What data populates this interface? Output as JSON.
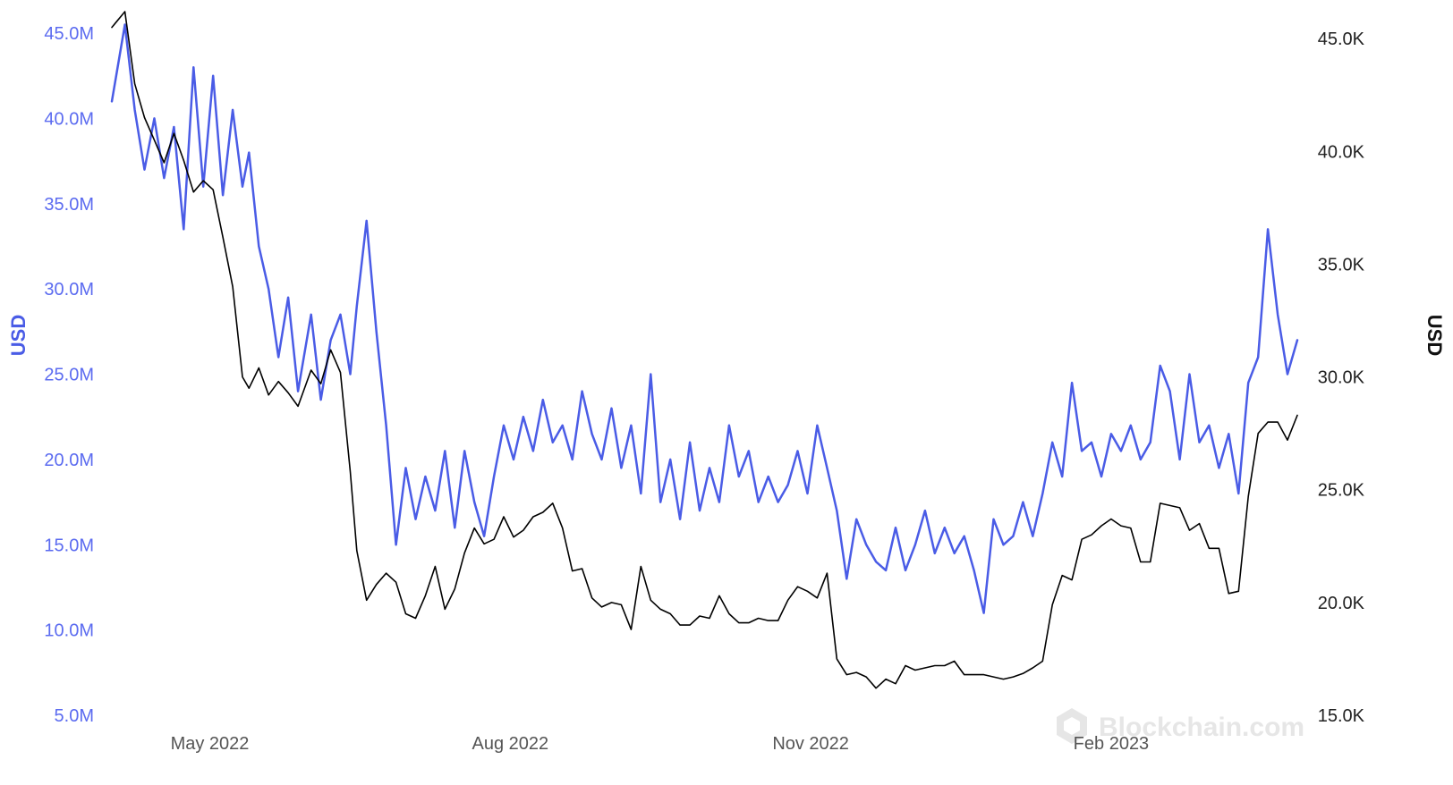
{
  "chart_data": {
    "type": "line",
    "x_tick_labels": [
      "May 2022",
      "Aug 2022",
      "Nov 2022",
      "Feb 2023"
    ],
    "x_tick_dates": [
      "2022-05-01",
      "2022-08-01",
      "2022-11-01",
      "2023-02-01"
    ],
    "y_left": {
      "label": "USD",
      "ticks": [
        "5.0M",
        "10.0M",
        "15.0M",
        "20.0M",
        "25.0M",
        "30.0M",
        "35.0M",
        "40.0M",
        "45.0M"
      ],
      "ylim": [
        5000000,
        46000000
      ]
    },
    "y_right": {
      "label": "USD",
      "ticks": [
        "15.0K",
        "20.0K",
        "25.0K",
        "30.0K",
        "35.0K",
        "40.0K",
        "45.0K"
      ],
      "ylim": [
        15000,
        46000
      ]
    },
    "colors": {
      "left_series": "#4a5ce6",
      "right_series": "#000000"
    },
    "series": [
      {
        "axis": "left",
        "points": [
          [
            "2022-04-01",
            41000000
          ],
          [
            "2022-04-05",
            45500000
          ],
          [
            "2022-04-08",
            40500000
          ],
          [
            "2022-04-11",
            37000000
          ],
          [
            "2022-04-14",
            40000000
          ],
          [
            "2022-04-17",
            36500000
          ],
          [
            "2022-04-20",
            39500000
          ],
          [
            "2022-04-23",
            33500000
          ],
          [
            "2022-04-26",
            43000000
          ],
          [
            "2022-04-29",
            36000000
          ],
          [
            "2022-05-02",
            42500000
          ],
          [
            "2022-05-05",
            35500000
          ],
          [
            "2022-05-08",
            40500000
          ],
          [
            "2022-05-11",
            36000000
          ],
          [
            "2022-05-13",
            38000000
          ],
          [
            "2022-05-16",
            32500000
          ],
          [
            "2022-05-19",
            30000000
          ],
          [
            "2022-05-22",
            26000000
          ],
          [
            "2022-05-25",
            29500000
          ],
          [
            "2022-05-28",
            24000000
          ],
          [
            "2022-06-01",
            28500000
          ],
          [
            "2022-06-04",
            23500000
          ],
          [
            "2022-06-07",
            27000000
          ],
          [
            "2022-06-10",
            28500000
          ],
          [
            "2022-06-13",
            25000000
          ],
          [
            "2022-06-15",
            29000000
          ],
          [
            "2022-06-18",
            34000000
          ],
          [
            "2022-06-21",
            27500000
          ],
          [
            "2022-06-24",
            22000000
          ],
          [
            "2022-06-27",
            15000000
          ],
          [
            "2022-06-30",
            19500000
          ],
          [
            "2022-07-03",
            16500000
          ],
          [
            "2022-07-06",
            19000000
          ],
          [
            "2022-07-09",
            17000000
          ],
          [
            "2022-07-12",
            20500000
          ],
          [
            "2022-07-15",
            16000000
          ],
          [
            "2022-07-18",
            20500000
          ],
          [
            "2022-07-21",
            17500000
          ],
          [
            "2022-07-24",
            15500000
          ],
          [
            "2022-07-27",
            19000000
          ],
          [
            "2022-07-30",
            22000000
          ],
          [
            "2022-08-02",
            20000000
          ],
          [
            "2022-08-05",
            22500000
          ],
          [
            "2022-08-08",
            20500000
          ],
          [
            "2022-08-11",
            23500000
          ],
          [
            "2022-08-14",
            21000000
          ],
          [
            "2022-08-17",
            22000000
          ],
          [
            "2022-08-20",
            20000000
          ],
          [
            "2022-08-23",
            24000000
          ],
          [
            "2022-08-26",
            21500000
          ],
          [
            "2022-08-29",
            20000000
          ],
          [
            "2022-09-01",
            23000000
          ],
          [
            "2022-09-04",
            19500000
          ],
          [
            "2022-09-07",
            22000000
          ],
          [
            "2022-09-10",
            18000000
          ],
          [
            "2022-09-13",
            25000000
          ],
          [
            "2022-09-16",
            17500000
          ],
          [
            "2022-09-19",
            20000000
          ],
          [
            "2022-09-22",
            16500000
          ],
          [
            "2022-09-25",
            21000000
          ],
          [
            "2022-09-28",
            17000000
          ],
          [
            "2022-10-01",
            19500000
          ],
          [
            "2022-10-04",
            17500000
          ],
          [
            "2022-10-07",
            22000000
          ],
          [
            "2022-10-10",
            19000000
          ],
          [
            "2022-10-13",
            20500000
          ],
          [
            "2022-10-16",
            17500000
          ],
          [
            "2022-10-19",
            19000000
          ],
          [
            "2022-10-22",
            17500000
          ],
          [
            "2022-10-25",
            18500000
          ],
          [
            "2022-10-28",
            20500000
          ],
          [
            "2022-10-31",
            18000000
          ],
          [
            "2022-11-03",
            22000000
          ],
          [
            "2022-11-06",
            19500000
          ],
          [
            "2022-11-09",
            17000000
          ],
          [
            "2022-11-12",
            13000000
          ],
          [
            "2022-11-15",
            16500000
          ],
          [
            "2022-11-18",
            15000000
          ],
          [
            "2022-11-21",
            14000000
          ],
          [
            "2022-11-24",
            13500000
          ],
          [
            "2022-11-27",
            16000000
          ],
          [
            "2022-11-30",
            13500000
          ],
          [
            "2022-12-03",
            15000000
          ],
          [
            "2022-12-06",
            17000000
          ],
          [
            "2022-12-09",
            14500000
          ],
          [
            "2022-12-12",
            16000000
          ],
          [
            "2022-12-15",
            14500000
          ],
          [
            "2022-12-18",
            15500000
          ],
          [
            "2022-12-21",
            13500000
          ],
          [
            "2022-12-24",
            11000000
          ],
          [
            "2022-12-27",
            16500000
          ],
          [
            "2022-12-30",
            15000000
          ],
          [
            "2023-01-02",
            15500000
          ],
          [
            "2023-01-05",
            17500000
          ],
          [
            "2023-01-08",
            15500000
          ],
          [
            "2023-01-11",
            18000000
          ],
          [
            "2023-01-14",
            21000000
          ],
          [
            "2023-01-17",
            19000000
          ],
          [
            "2023-01-20",
            24500000
          ],
          [
            "2023-01-23",
            20500000
          ],
          [
            "2023-01-26",
            21000000
          ],
          [
            "2023-01-29",
            19000000
          ],
          [
            "2023-02-01",
            21500000
          ],
          [
            "2023-02-04",
            20500000
          ],
          [
            "2023-02-07",
            22000000
          ],
          [
            "2023-02-10",
            20000000
          ],
          [
            "2023-02-13",
            21000000
          ],
          [
            "2023-02-16",
            25500000
          ],
          [
            "2023-02-19",
            24000000
          ],
          [
            "2023-02-22",
            20000000
          ],
          [
            "2023-02-25",
            25000000
          ],
          [
            "2023-02-28",
            21000000
          ],
          [
            "2023-03-03",
            22000000
          ],
          [
            "2023-03-06",
            19500000
          ],
          [
            "2023-03-09",
            21500000
          ],
          [
            "2023-03-12",
            18000000
          ],
          [
            "2023-03-15",
            24500000
          ],
          [
            "2023-03-18",
            26000000
          ],
          [
            "2023-03-21",
            33500000
          ],
          [
            "2023-03-24",
            28500000
          ],
          [
            "2023-03-27",
            25000000
          ],
          [
            "2023-03-30",
            27000000
          ]
        ]
      },
      {
        "axis": "right",
        "points": [
          [
            "2022-04-01",
            45500
          ],
          [
            "2022-04-05",
            46200
          ],
          [
            "2022-04-08",
            43000
          ],
          [
            "2022-04-11",
            41500
          ],
          [
            "2022-04-14",
            40500
          ],
          [
            "2022-04-17",
            39500
          ],
          [
            "2022-04-20",
            40800
          ],
          [
            "2022-04-23",
            39600
          ],
          [
            "2022-04-26",
            38200
          ],
          [
            "2022-04-29",
            38700
          ],
          [
            "2022-05-02",
            38300
          ],
          [
            "2022-05-05",
            36200
          ],
          [
            "2022-05-08",
            34000
          ],
          [
            "2022-05-11",
            30000
          ],
          [
            "2022-05-13",
            29500
          ],
          [
            "2022-05-16",
            30400
          ],
          [
            "2022-05-19",
            29200
          ],
          [
            "2022-05-22",
            29800
          ],
          [
            "2022-05-25",
            29300
          ],
          [
            "2022-05-28",
            28700
          ],
          [
            "2022-06-01",
            30300
          ],
          [
            "2022-06-04",
            29700
          ],
          [
            "2022-06-07",
            31200
          ],
          [
            "2022-06-10",
            30200
          ],
          [
            "2022-06-13",
            25800
          ],
          [
            "2022-06-15",
            22300
          ],
          [
            "2022-06-18",
            20100
          ],
          [
            "2022-06-21",
            20800
          ],
          [
            "2022-06-24",
            21300
          ],
          [
            "2022-06-27",
            20900
          ],
          [
            "2022-06-30",
            19500
          ],
          [
            "2022-07-03",
            19300
          ],
          [
            "2022-07-06",
            20300
          ],
          [
            "2022-07-09",
            21600
          ],
          [
            "2022-07-12",
            19700
          ],
          [
            "2022-07-15",
            20600
          ],
          [
            "2022-07-18",
            22200
          ],
          [
            "2022-07-21",
            23300
          ],
          [
            "2022-07-24",
            22600
          ],
          [
            "2022-07-27",
            22800
          ],
          [
            "2022-07-30",
            23800
          ],
          [
            "2022-08-02",
            22900
          ],
          [
            "2022-08-05",
            23200
          ],
          [
            "2022-08-08",
            23800
          ],
          [
            "2022-08-11",
            24000
          ],
          [
            "2022-08-14",
            24400
          ],
          [
            "2022-08-17",
            23300
          ],
          [
            "2022-08-20",
            21400
          ],
          [
            "2022-08-23",
            21500
          ],
          [
            "2022-08-26",
            20200
          ],
          [
            "2022-08-29",
            19800
          ],
          [
            "2022-09-01",
            20000
          ],
          [
            "2022-09-04",
            19900
          ],
          [
            "2022-09-07",
            18800
          ],
          [
            "2022-09-10",
            21600
          ],
          [
            "2022-09-13",
            20100
          ],
          [
            "2022-09-16",
            19700
          ],
          [
            "2022-09-19",
            19500
          ],
          [
            "2022-09-22",
            19000
          ],
          [
            "2022-09-25",
            19000
          ],
          [
            "2022-09-28",
            19400
          ],
          [
            "2022-10-01",
            19300
          ],
          [
            "2022-10-04",
            20300
          ],
          [
            "2022-10-07",
            19500
          ],
          [
            "2022-10-10",
            19100
          ],
          [
            "2022-10-13",
            19100
          ],
          [
            "2022-10-16",
            19300
          ],
          [
            "2022-10-19",
            19200
          ],
          [
            "2022-10-22",
            19200
          ],
          [
            "2022-10-25",
            20100
          ],
          [
            "2022-10-28",
            20700
          ],
          [
            "2022-10-31",
            20500
          ],
          [
            "2022-11-03",
            20200
          ],
          [
            "2022-11-06",
            21300
          ],
          [
            "2022-11-09",
            17500
          ],
          [
            "2022-11-12",
            16800
          ],
          [
            "2022-11-15",
            16900
          ],
          [
            "2022-11-18",
            16700
          ],
          [
            "2022-11-21",
            16200
          ],
          [
            "2022-11-24",
            16600
          ],
          [
            "2022-11-27",
            16400
          ],
          [
            "2022-11-30",
            17200
          ],
          [
            "2022-12-03",
            17000
          ],
          [
            "2022-12-06",
            17100
          ],
          [
            "2022-12-09",
            17200
          ],
          [
            "2022-12-12",
            17200
          ],
          [
            "2022-12-15",
            17400
          ],
          [
            "2022-12-18",
            16800
          ],
          [
            "2022-12-21",
            16800
          ],
          [
            "2022-12-24",
            16800
          ],
          [
            "2022-12-27",
            16700
          ],
          [
            "2022-12-30",
            16600
          ],
          [
            "2023-01-02",
            16700
          ],
          [
            "2023-01-05",
            16850
          ],
          [
            "2023-01-08",
            17100
          ],
          [
            "2023-01-11",
            17400
          ],
          [
            "2023-01-14",
            19900
          ],
          [
            "2023-01-17",
            21200
          ],
          [
            "2023-01-20",
            21000
          ],
          [
            "2023-01-23",
            22800
          ],
          [
            "2023-01-26",
            23000
          ],
          [
            "2023-01-29",
            23400
          ],
          [
            "2023-02-01",
            23700
          ],
          [
            "2023-02-04",
            23400
          ],
          [
            "2023-02-07",
            23300
          ],
          [
            "2023-02-10",
            21800
          ],
          [
            "2023-02-13",
            21800
          ],
          [
            "2023-02-16",
            24400
          ],
          [
            "2023-02-19",
            24300
          ],
          [
            "2023-02-22",
            24200
          ],
          [
            "2023-02-25",
            23200
          ],
          [
            "2023-02-28",
            23500
          ],
          [
            "2023-03-03",
            22400
          ],
          [
            "2023-03-06",
            22400
          ],
          [
            "2023-03-09",
            20400
          ],
          [
            "2023-03-12",
            20500
          ],
          [
            "2023-03-15",
            24700
          ],
          [
            "2023-03-18",
            27500
          ],
          [
            "2023-03-21",
            28000
          ],
          [
            "2023-03-24",
            28000
          ],
          [
            "2023-03-27",
            27200
          ],
          [
            "2023-03-30",
            28300
          ]
        ]
      }
    ]
  },
  "watermark": {
    "text": "Blockchain.com"
  }
}
